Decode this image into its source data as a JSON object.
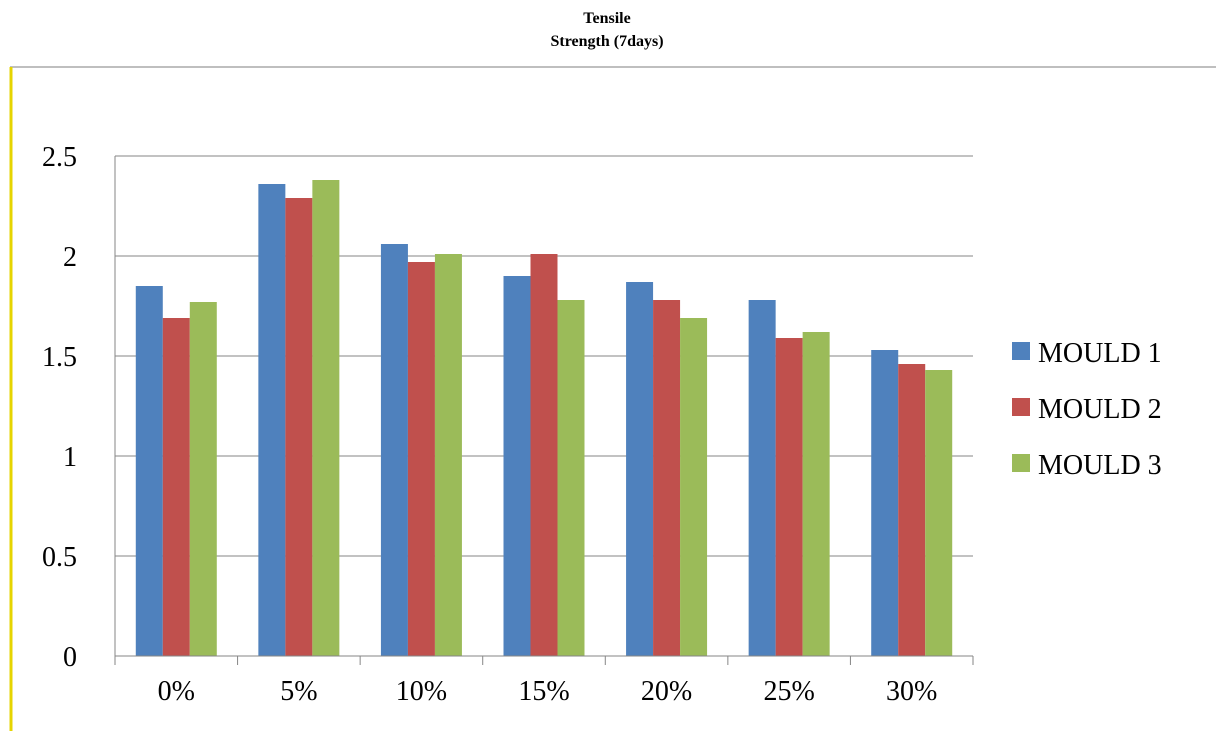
{
  "chart_data": {
    "type": "bar",
    "title_line1": "Tensile",
    "title_line2": "Strength (7days)",
    "categories": [
      "0%",
      "5%",
      "10%",
      "15%",
      "20%",
      "25%",
      "30%"
    ],
    "series": [
      {
        "name": "MOULD 1",
        "color": "#4F81BD",
        "values": [
          1.85,
          2.36,
          2.06,
          1.9,
          1.87,
          1.78,
          1.53
        ]
      },
      {
        "name": "MOULD 2",
        "color": "#C0504D",
        "values": [
          1.69,
          2.29,
          1.97,
          2.01,
          1.78,
          1.59,
          1.46
        ]
      },
      {
        "name": "MOULD 3",
        "color": "#9BBB59",
        "values": [
          1.77,
          2.38,
          2.01,
          1.78,
          1.69,
          1.62,
          1.43
        ]
      }
    ],
    "ylim": [
      0,
      2.5
    ],
    "yticks": [
      "0",
      "0.5",
      "1",
      "1.5",
      "2",
      "2.5"
    ],
    "ytick_values": [
      0,
      0.5,
      1,
      1.5,
      2,
      2.5
    ],
    "grid": true,
    "legend_position": "right"
  }
}
